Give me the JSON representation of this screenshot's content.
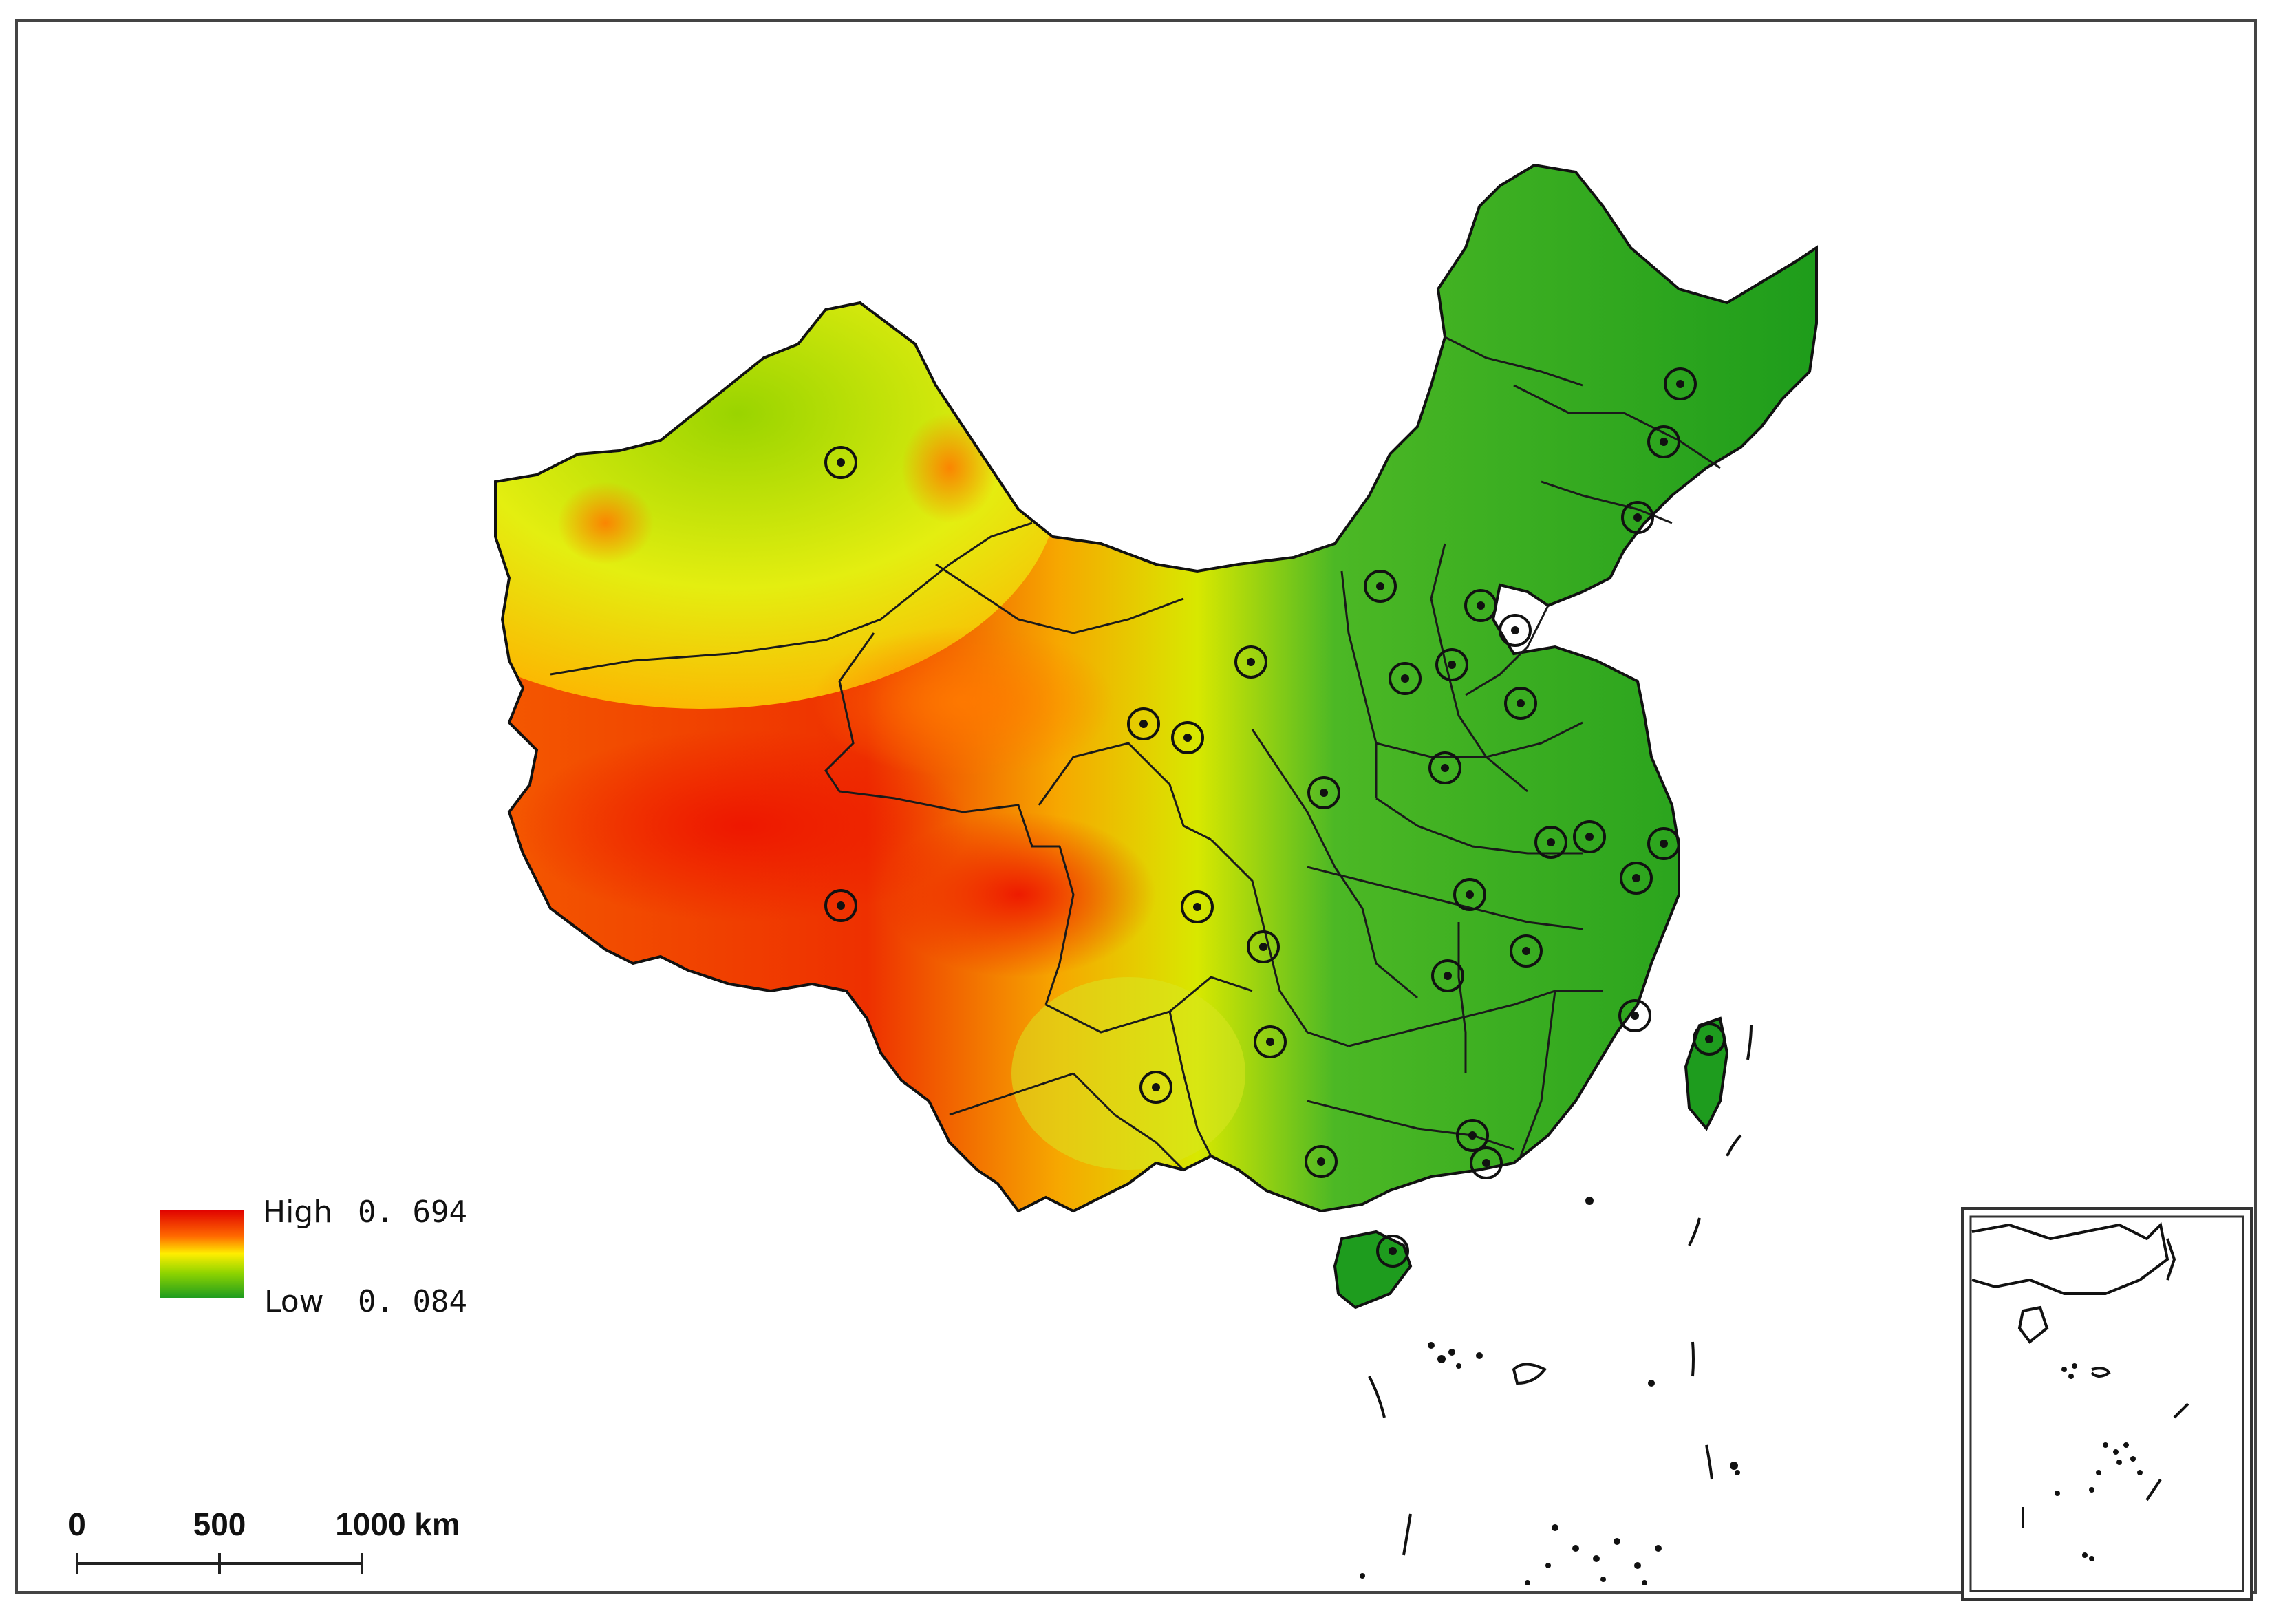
{
  "legend": {
    "high_label": "High",
    "high_value": "0. 694",
    "low_label": "Low",
    "low_value": "0. 084",
    "colors": [
      "#e00000",
      "#ff6a00",
      "#ffee00",
      "#8fd400",
      "#1e9c1e"
    ]
  },
  "scale_bar": {
    "labels": [
      "0",
      "500",
      "1000 km"
    ]
  },
  "map": {
    "high_color": "#ee1100",
    "low_color": "#1a9a1a",
    "marker_count": 33
  }
}
